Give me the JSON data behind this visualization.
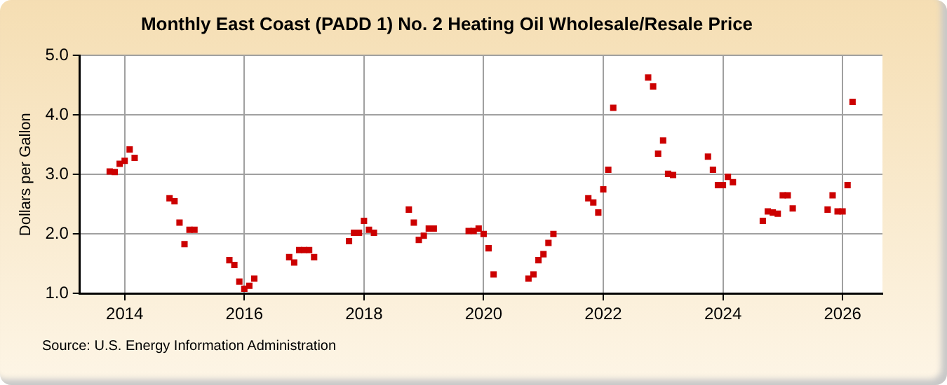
{
  "chart_data": {
    "type": "scatter",
    "title": "Monthly East Coast (PADD 1) No. 2 Heating Oil Wholesale/Resale Price",
    "ylabel": "Dollars per Gallon",
    "annotations": [
      "Source: U.S. Energy Information Administration"
    ],
    "x": [
      "2013-10",
      "2013-11",
      "2013-12",
      "2014-01",
      "2014-02",
      "2014-03",
      "2014-10",
      "2014-11",
      "2014-12",
      "2015-01",
      "2015-02",
      "2015-03",
      "2015-10",
      "2015-11",
      "2015-12",
      "2016-01",
      "2016-02",
      "2016-03",
      "2016-10",
      "2016-11",
      "2016-12",
      "2017-01",
      "2017-02",
      "2017-03",
      "2017-10",
      "2017-11",
      "2017-12",
      "2018-01",
      "2018-02",
      "2018-03",
      "2018-10",
      "2018-11",
      "2018-12",
      "2019-01",
      "2019-02",
      "2019-03",
      "2019-10",
      "2019-11",
      "2019-12",
      "2020-01",
      "2020-02",
      "2020-03",
      "2020-10",
      "2020-11",
      "2020-12",
      "2021-01",
      "2021-02",
      "2021-03",
      "2021-10",
      "2021-11",
      "2021-12",
      "2022-01",
      "2022-02",
      "2022-03",
      "2022-10",
      "2022-11",
      "2022-12",
      "2023-01",
      "2023-02",
      "2023-03",
      "2023-10",
      "2023-11",
      "2023-12",
      "2024-01",
      "2024-02",
      "2024-03",
      "2024-09",
      "2024-10",
      "2024-11",
      "2024-12",
      "2025-01",
      "2025-02",
      "2025-03",
      "2025-10",
      "2025-11",
      "2025-12",
      "2026-01",
      "2026-02",
      "2026-03"
    ],
    "series": [
      {
        "color": "#cc0000",
        "values": [
          3.05,
          3.04,
          3.18,
          3.23,
          3.42,
          3.28,
          2.6,
          2.55,
          2.19,
          1.83,
          2.07,
          2.07,
          1.56,
          1.48,
          1.2,
          1.08,
          1.13,
          1.25,
          1.61,
          1.52,
          1.73,
          1.73,
          1.73,
          1.61,
          1.88,
          2.02,
          2.02,
          2.22,
          2.07,
          2.02,
          2.41,
          2.19,
          1.9,
          1.97,
          2.09,
          2.09,
          2.05,
          2.05,
          2.09,
          2.0,
          1.76,
          1.32,
          1.25,
          1.32,
          1.56,
          1.66,
          1.85,
          2.0,
          2.6,
          2.53,
          2.36,
          2.75,
          3.08,
          4.12,
          4.63,
          4.48,
          3.35,
          3.57,
          3.01,
          2.99,
          3.3,
          3.08,
          2.82,
          2.82,
          2.96,
          2.87,
          2.22,
          2.38,
          2.36,
          2.34,
          2.65,
          2.65,
          2.43,
          2.41,
          2.65,
          2.38,
          2.38,
          2.82,
          4.22
        ]
      }
    ],
    "xlim": [
      "2013-04",
      "2026-09"
    ],
    "xticks": [
      "2014",
      "2016",
      "2018",
      "2020",
      "2022",
      "2024",
      "2026"
    ],
    "ylim": [
      1,
      5
    ],
    "yticks": [
      {
        "value": 1,
        "label": "1.0"
      },
      {
        "value": 2,
        "label": "2.0"
      },
      {
        "value": 3,
        "label": "3.0"
      },
      {
        "value": 4,
        "label": "4.0"
      },
      {
        "value": 5,
        "label": "5.0"
      }
    ],
    "grid": true,
    "marker": "square",
    "legend": false
  }
}
